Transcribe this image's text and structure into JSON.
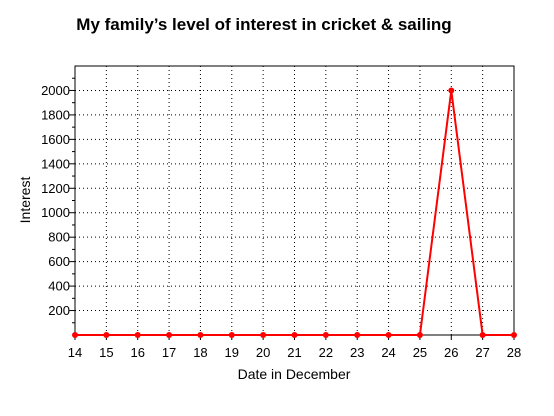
{
  "chart_data": {
    "type": "line",
    "title": "My family’s level of interest in cricket & sailing",
    "xlabel": "Date in December",
    "ylabel": "Interest",
    "x": [
      14,
      15,
      16,
      17,
      18,
      19,
      20,
      21,
      22,
      23,
      24,
      25,
      26,
      27,
      28
    ],
    "series": [
      {
        "values": [
          0,
          0,
          0,
          0,
          0,
          0,
          0,
          0,
          0,
          0,
          0,
          0,
          2000,
          0,
          0
        ],
        "color": "#ff0000"
      }
    ],
    "xlim": [
      14,
      28
    ],
    "ylim": [
      0,
      2200
    ],
    "xticks": [
      14,
      15,
      16,
      17,
      18,
      19,
      20,
      21,
      22,
      23,
      24,
      25,
      26,
      27,
      28
    ],
    "yticks": [
      200,
      400,
      600,
      800,
      1000,
      1200,
      1400,
      1600,
      1800,
      2000
    ],
    "grid": true,
    "grid_style": "dotted",
    "legend": "none"
  }
}
